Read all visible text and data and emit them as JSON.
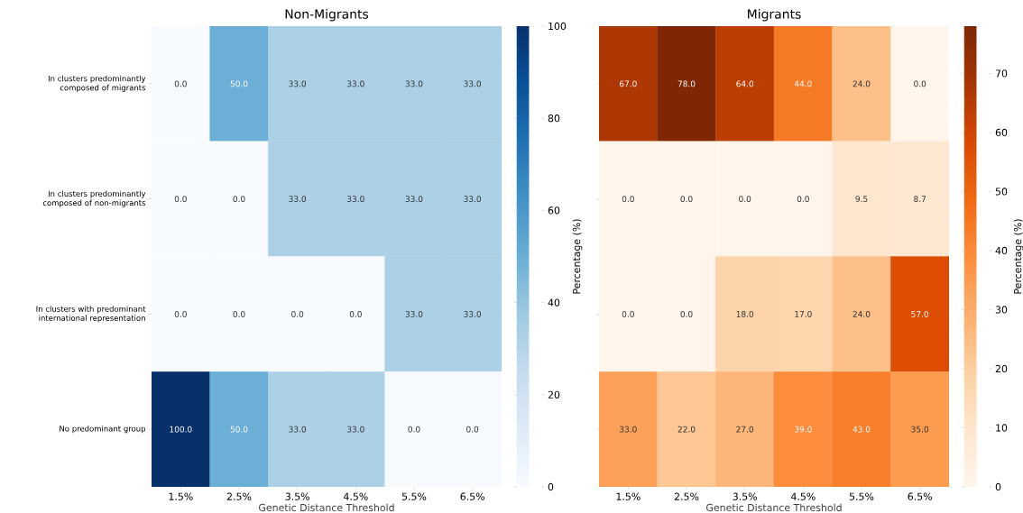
{
  "chart_data": [
    {
      "type": "heatmap",
      "title": "Non-Migrants",
      "xlabel": "Genetic Distance Threshold",
      "clabel": "Percentage (%)",
      "categories": [
        "1.5%",
        "2.5%",
        "3.5%",
        "4.5%",
        "5.5%",
        "6.5%"
      ],
      "y_categories": [
        "In clusters predominantly composed of migrants",
        "In clusters predominantly composed of non-migrants",
        "In clusters with predominant international representation",
        "No predominant group"
      ],
      "cells": [
        [
          0,
          50,
          33,
          33,
          33,
          33
        ],
        [
          0,
          0,
          33,
          33,
          33,
          33
        ],
        [
          0,
          0,
          0,
          0,
          33,
          33
        ],
        [
          100,
          50,
          33,
          33,
          0,
          0
        ]
      ],
      "cell_labels": [
        [
          "0.0",
          "50.0",
          "33.0",
          "33.0",
          "33.0",
          "33.0"
        ],
        [
          "0.0",
          "0.0",
          "33.0",
          "33.0",
          "33.0",
          "33.0"
        ],
        [
          "0.0",
          "0.0",
          "0.0",
          "0.0",
          "33.0",
          "33.0"
        ],
        [
          "100.0",
          "50.0",
          "33.0",
          "33.0",
          "0.0",
          "0.0"
        ]
      ],
      "clim": [
        0,
        100
      ],
      "cticks": [
        0,
        20,
        40,
        60,
        80,
        100
      ]
    },
    {
      "type": "heatmap",
      "title": "Migrants",
      "xlabel": "Genetic Distance Threshold",
      "clabel": "Percentage (%)",
      "categories": [
        "1.5%",
        "2.5%",
        "3.5%",
        "4.5%",
        "5.5%",
        "6.5%"
      ],
      "y_categories": [
        null,
        null,
        null,
        null
      ],
      "cells": [
        [
          67,
          78,
          64,
          44,
          24,
          0
        ],
        [
          0,
          0,
          0,
          0,
          9.5,
          8.7
        ],
        [
          0,
          0,
          18,
          17,
          24,
          57
        ],
        [
          33,
          22,
          27,
          39,
          43,
          35
        ]
      ],
      "cell_labels": [
        [
          "67.0",
          "78.0",
          "64.0",
          "44.0",
          "24.0",
          "0.0"
        ],
        [
          "0.0",
          "0.0",
          "0.0",
          "0.0",
          "9.5",
          "8.7"
        ],
        [
          "0.0",
          "0.0",
          "18.0",
          "17.0",
          "24.0",
          "57.0"
        ],
        [
          "33.0",
          "22.0",
          "27.0",
          "39.0",
          "43.0",
          "35.0"
        ]
      ],
      "clim": [
        0,
        78
      ],
      "cticks": [
        0,
        10,
        20,
        30,
        40,
        50,
        60,
        70
      ],
      "tick_labels": "x"
    }
  ]
}
